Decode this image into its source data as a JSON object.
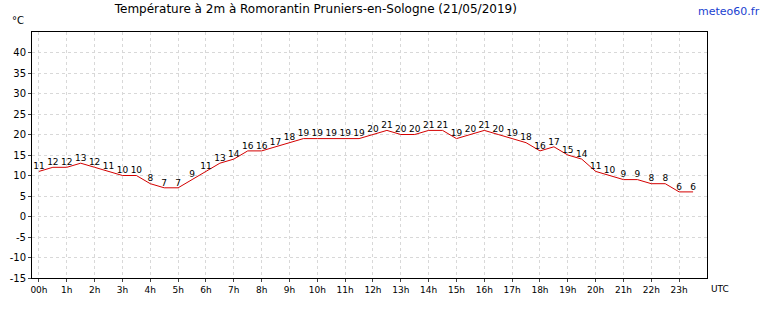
{
  "chart_data": {
    "type": "line",
    "title": "Température à 2m à Romorantin Pruniers-en-Sologne (21/05/2019)",
    "x_label": "UTC",
    "y_label": "°C",
    "annotations": [
      "meteo60.fr"
    ],
    "x": [
      0,
      0.5,
      1,
      1.5,
      2,
      2.5,
      3,
      3.5,
      4,
      4.5,
      5,
      5.5,
      6,
      6.5,
      7,
      7.5,
      8,
      8.5,
      9,
      9.5,
      10,
      10.5,
      11,
      11.5,
      12,
      12.5,
      13,
      13.5,
      14,
      14.5,
      15,
      15.5,
      16,
      16.5,
      17,
      17.5,
      18,
      18.5,
      19,
      19.5,
      20,
      20.5,
      21,
      21.5,
      22,
      22.5,
      23,
      23.5
    ],
    "values": [
      11,
      12,
      12,
      13,
      12,
      11,
      10,
      10,
      8,
      7,
      7,
      9,
      11,
      13,
      14,
      16,
      16,
      17,
      18,
      19,
      19,
      19,
      19,
      19,
      20,
      21,
      20,
      20,
      21,
      21,
      19,
      20,
      21,
      20,
      19,
      18,
      16,
      17,
      15,
      14,
      11,
      10,
      9,
      9,
      8,
      8,
      6,
      6
    ],
    "color": "#d40000",
    "xlim": [
      -0.25,
      24
    ],
    "xticks": [
      {
        "value": 0,
        "label": "00h"
      },
      {
        "value": 1,
        "label": "1h"
      },
      {
        "value": 2,
        "label": "2h"
      },
      {
        "value": 3,
        "label": "3h"
      },
      {
        "value": 4,
        "label": "4h"
      },
      {
        "value": 5,
        "label": "5h"
      },
      {
        "value": 6,
        "label": "6h"
      },
      {
        "value": 7,
        "label": "7h"
      },
      {
        "value": 8,
        "label": "8h"
      },
      {
        "value": 9,
        "label": "9h"
      },
      {
        "value": 10,
        "label": "10h"
      },
      {
        "value": 11,
        "label": "11h"
      },
      {
        "value": 12,
        "label": "12h"
      },
      {
        "value": 13,
        "label": "13h"
      },
      {
        "value": 14,
        "label": "14h"
      },
      {
        "value": 15,
        "label": "15h"
      },
      {
        "value": 16,
        "label": "16h"
      },
      {
        "value": 17,
        "label": "17h"
      },
      {
        "value": 18,
        "label": "18h"
      },
      {
        "value": 19,
        "label": "19h"
      },
      {
        "value": 20,
        "label": "20h"
      },
      {
        "value": 21,
        "label": "21h"
      },
      {
        "value": 22,
        "label": "22h"
      },
      {
        "value": 23,
        "label": "23h"
      }
    ],
    "ylim": [
      -15,
      45
    ],
    "yticks": [
      -15,
      -10,
      -5,
      0,
      5,
      10,
      15,
      20,
      25,
      30,
      35,
      40
    ],
    "grid": true,
    "data_labels": true
  }
}
